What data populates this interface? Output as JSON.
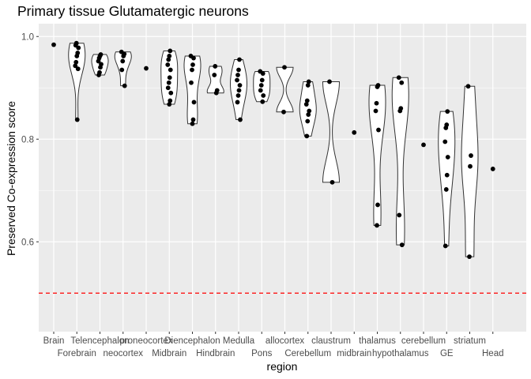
{
  "chart_data": {
    "type": "violin",
    "title": "Primary tissue Glutamatergic neurons",
    "xlabel": "region",
    "ylabel": "Preserved Co-expression score",
    "ylim": [
      0.425,
      1.025
    ],
    "yticks": [
      0.6,
      0.8,
      1.0
    ],
    "ytick_labels": [
      "0.6",
      "0.8",
      "1.0"
    ],
    "reference_line": {
      "y": 0.5,
      "color": "#ff0000",
      "style": "dashed"
    },
    "colors": {
      "panel": "#ebebeb",
      "grid": "#ffffff",
      "point": "#000000",
      "violin": "#ffffff"
    },
    "categories": [
      "Brain",
      "Forebrain",
      "Telencephalon",
      "neocortex",
      "proneocortex",
      "Midbrain",
      "Diencephalon",
      "Hindbrain",
      "Medulla",
      "Pons",
      "allocortex",
      "Cerebellum",
      "claustrum",
      "midbrain",
      "thalamus",
      "hypothalamus",
      "cerebellum",
      "GE",
      "striatum",
      "Head"
    ],
    "points": [
      [
        0.984
      ],
      [
        0.987,
        0.983,
        0.978,
        0.968,
        0.962,
        0.95,
        0.943,
        0.937,
        0.838
      ],
      [
        0.965,
        0.962,
        0.958,
        0.952,
        0.946,
        0.94,
        0.93,
        0.925
      ],
      [
        0.97,
        0.966,
        0.962,
        0.952,
        0.935,
        0.904
      ],
      [
        0.938
      ],
      [
        0.972,
        0.962,
        0.955,
        0.945,
        0.935,
        0.92,
        0.91,
        0.9,
        0.89,
        0.875,
        0.868
      ],
      [
        0.962,
        0.958,
        0.945,
        0.935,
        0.91,
        0.872,
        0.838,
        0.83
      ],
      [
        0.942,
        0.925,
        0.895,
        0.89
      ],
      [
        0.955,
        0.935,
        0.925,
        0.915,
        0.905,
        0.895,
        0.885,
        0.872,
        0.838
      ],
      [
        0.932,
        0.928,
        0.915,
        0.905,
        0.895,
        0.885,
        0.873
      ],
      [
        0.94,
        0.853
      ],
      [
        0.912,
        0.905,
        0.875,
        0.868,
        0.855,
        0.848,
        0.835,
        0.806
      ],
      [
        0.912,
        0.716
      ],
      [
        0.813
      ],
      [
        0.905,
        0.902,
        0.87,
        0.855,
        0.818,
        0.672,
        0.632
      ],
      [
        0.92,
        0.91,
        0.86,
        0.855,
        0.652,
        0.594
      ],
      [
        0.789
      ],
      [
        0.854,
        0.828,
        0.822,
        0.795,
        0.765,
        0.73,
        0.702,
        0.592
      ],
      [
        0.903,
        0.768,
        0.747,
        0.571
      ],
      [
        0.742
      ]
    ]
  }
}
